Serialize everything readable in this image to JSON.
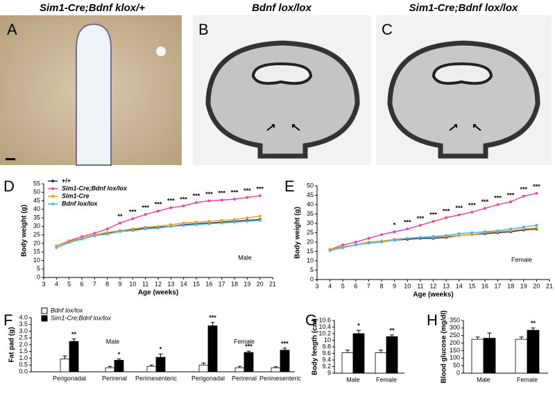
{
  "image_panels": [
    {
      "panel": "A",
      "title": "Sim1-Cre;Bdnf klox/+"
    },
    {
      "panel": "B",
      "title": "Bdnf lox/lox"
    },
    {
      "panel": "C",
      "title": "Sim1-Cre;Bdnf lox/lox"
    }
  ],
  "chart_data": [
    {
      "panel": "D",
      "type": "line",
      "x": [
        4,
        5,
        6,
        7,
        8,
        9,
        10,
        11,
        12,
        13,
        14,
        15,
        16,
        17,
        18,
        19,
        20
      ],
      "xlim": [
        3,
        21
      ],
      "xticks": [
        3,
        4,
        5,
        6,
        7,
        8,
        9,
        10,
        11,
        12,
        13,
        14,
        15,
        16,
        17,
        18,
        19,
        20,
        21
      ],
      "ylim": [
        0,
        55
      ],
      "yticks": [
        0,
        5,
        10,
        15,
        20,
        25,
        30,
        35,
        40,
        45,
        50,
        55
      ],
      "xlabel": "Age (weeks)",
      "ylabel": "Body weight (g)",
      "label": "Male",
      "legend": "upper left",
      "series": [
        {
          "name": "+/+",
          "color": "#2b2b70",
          "values": [
            18.5,
            21,
            23,
            25,
            26,
            27.5,
            28,
            29,
            29.5,
            30,
            31,
            31.5,
            32,
            32.5,
            33,
            33.5,
            34
          ]
        },
        {
          "name": "Sim1-Cre;Bdnf lox/lox",
          "color": "#e8479a",
          "values": [
            18.5,
            21.5,
            24,
            26,
            28.5,
            32,
            34.5,
            37,
            39,
            41,
            42,
            44,
            45,
            45.5,
            46,
            47,
            48
          ]
        },
        {
          "name": "Sim1-Cre",
          "color": "#f0a020",
          "values": [
            18.5,
            21,
            23,
            25,
            26.5,
            27.5,
            28.5,
            29.5,
            30,
            31,
            32,
            32.5,
            33,
            33.5,
            34,
            35,
            36
          ]
        },
        {
          "name": "Bdnf lox/lox",
          "color": "#4ab8e0",
          "values": [
            17.5,
            20.5,
            22.5,
            24.5,
            25.5,
            27,
            27.5,
            28.5,
            29,
            30,
            30.5,
            31,
            31.5,
            32,
            32.5,
            33,
            33.5
          ]
        }
      ],
      "annotations": [
        {
          "x": 9,
          "text": "**"
        },
        {
          "x": 10,
          "text": "***"
        },
        {
          "x": 11,
          "text": "***"
        },
        {
          "x": 12,
          "text": "***"
        },
        {
          "x": 13,
          "text": "***"
        },
        {
          "x": 14,
          "text": "***"
        },
        {
          "x": 15,
          "text": "***"
        },
        {
          "x": 16,
          "text": "***"
        },
        {
          "x": 17,
          "text": "***"
        },
        {
          "x": 18,
          "text": "***"
        },
        {
          "x": 19,
          "text": "***"
        },
        {
          "x": 20,
          "text": "***"
        }
      ]
    },
    {
      "panel": "E",
      "type": "line",
      "x": [
        4,
        5,
        6,
        7,
        8,
        9,
        10,
        11,
        12,
        13,
        14,
        15,
        16,
        17,
        18,
        19,
        20
      ],
      "xlim": [
        3,
        21
      ],
      "xticks": [
        3,
        4,
        5,
        6,
        7,
        8,
        9,
        10,
        11,
        12,
        13,
        14,
        15,
        16,
        17,
        18,
        19,
        20,
        21
      ],
      "ylim": [
        0,
        50
      ],
      "yticks": [
        0,
        5,
        10,
        15,
        20,
        25,
        30,
        35,
        40,
        45,
        50
      ],
      "xlabel": "Age (weeks)",
      "ylabel": "Body weight (g)",
      "label": "Female",
      "series": [
        {
          "color": "#2b2b70",
          "values": [
            16,
            17.5,
            18.5,
            19.5,
            20.5,
            21,
            21.5,
            22,
            22,
            22.5,
            23.5,
            24,
            24.5,
            25,
            25.5,
            26.5,
            27
          ]
        },
        {
          "color": "#e8479a",
          "values": [
            16,
            18.5,
            20,
            22,
            24,
            25.5,
            27,
            29,
            31,
            33,
            34.5,
            36,
            38,
            40,
            41.5,
            44.5,
            46
          ]
        },
        {
          "color": "#f0a020",
          "values": [
            16,
            17.5,
            18.5,
            20,
            20.5,
            21.5,
            22,
            22.5,
            22.5,
            23,
            23.5,
            24,
            25,
            25.5,
            26,
            27,
            27.5
          ]
        },
        {
          "color": "#4ab8e0",
          "values": [
            15.5,
            17,
            18.5,
            19.5,
            20,
            21,
            22,
            22.5,
            23,
            23.5,
            24.5,
            25,
            25.5,
            26,
            27,
            28,
            29
          ]
        }
      ],
      "annotations": [
        {
          "x": 9,
          "text": "*"
        },
        {
          "x": 10,
          "text": "***"
        },
        {
          "x": 11,
          "text": "***"
        },
        {
          "x": 12,
          "text": "***"
        },
        {
          "x": 13,
          "text": "***"
        },
        {
          "x": 14,
          "text": "***"
        },
        {
          "x": 15,
          "text": "***"
        },
        {
          "x": 16,
          "text": "***"
        },
        {
          "x": 17,
          "text": "***"
        },
        {
          "x": 18,
          "text": "***"
        },
        {
          "x": 19,
          "text": "***"
        },
        {
          "x": 20,
          "text": "***"
        }
      ]
    },
    {
      "panel": "F",
      "type": "bar",
      "categories": [
        "Perigonadal",
        "Perirenal",
        "Perimesenteric",
        "Perigonadal",
        "Perirenal",
        "Perimesenteric"
      ],
      "group_labels": [
        "Male",
        "Female"
      ],
      "ylabel": "Fat pad (g)",
      "legend": "upper left",
      "ylim": [
        0,
        4
      ],
      "yticks": [
        {
          "value": 0,
          "label": "0.0"
        },
        {
          "value": 0.5,
          "label": "0.5"
        },
        {
          "value": 1,
          "label": "1.0"
        },
        {
          "value": 1.5,
          "label": "1.5"
        },
        {
          "value": 2,
          "label": "2.0"
        },
        {
          "value": 2.5,
          "label": "2.5"
        },
        {
          "value": 3,
          "label": "3.0"
        },
        {
          "value": 3.5,
          "label": "3.5"
        },
        {
          "value": 4,
          "label": "4.0"
        }
      ],
      "series": [
        {
          "name": "Bdnf lox/lox",
          "color": "#ffffff",
          "values": [
            0.95,
            0.3,
            0.4,
            0.5,
            0.3,
            0.3
          ],
          "errors": [
            0.22,
            0.1,
            0.1,
            0.15,
            0.1,
            0.07
          ]
        },
        {
          "name": "Sim1-Cre;Bdnf lox/lox",
          "color": "#000000",
          "values": [
            2.25,
            0.85,
            1.07,
            3.4,
            1.43,
            1.6
          ],
          "errors": [
            0.18,
            0.1,
            0.25,
            0.25,
            0.1,
            0.15
          ]
        }
      ],
      "annotations": [
        {
          "index": 0,
          "text": "**"
        },
        {
          "index": 1,
          "text": "*"
        },
        {
          "index": 2,
          "text": "*"
        },
        {
          "index": 3,
          "text": "***"
        },
        {
          "index": 4,
          "text": "***"
        },
        {
          "index": 5,
          "text": "***"
        }
      ]
    },
    {
      "panel": "G",
      "type": "bar",
      "categories": [
        "Male",
        "Female"
      ],
      "ylabel": "Body length (cm)",
      "ylim": [
        9,
        10.6
      ],
      "yticks": [
        9,
        9.2,
        9.4,
        9.6,
        9.8,
        10,
        10.2,
        10.4,
        10.6
      ],
      "series": [
        {
          "color": "#ffffff",
          "values": [
            9.62,
            9.62
          ],
          "errors": [
            0.08,
            0.08
          ]
        },
        {
          "color": "#000000",
          "values": [
            10.2,
            10.11
          ],
          "errors": [
            0.1,
            0.05
          ]
        }
      ],
      "annotations": [
        {
          "index": 0,
          "text": "*"
        },
        {
          "index": 1,
          "text": "**"
        }
      ]
    },
    {
      "panel": "H",
      "type": "bar",
      "categories": [
        "Male",
        "Female"
      ],
      "ylabel": "Blood glucose (mg/dl)",
      "ylim": [
        0,
        350
      ],
      "yticks": [
        0,
        50,
        100,
        150,
        200,
        250,
        300,
        350
      ],
      "series": [
        {
          "color": "#ffffff",
          "values": [
            225,
            225
          ],
          "errors": [
            15,
            15
          ]
        },
        {
          "color": "#000000",
          "values": [
            232,
            285
          ],
          "errors": [
            35,
            15
          ]
        }
      ],
      "annotations": [
        {
          "index": 1,
          "text": "**"
        }
      ]
    }
  ]
}
